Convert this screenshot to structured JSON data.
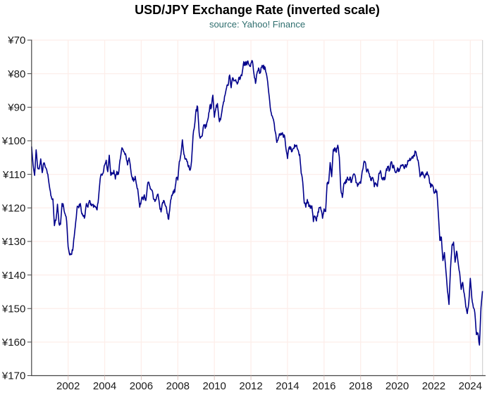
{
  "header": {
    "title": "USD/JPY Exchange Rate (inverted scale)",
    "subtitle": "source: Yahoo! Finance"
  },
  "colors": {
    "line": "#00008b",
    "axis": "#444444",
    "grid": "#fdeeea",
    "right_border": "#c9c9c9",
    "x_tick_mark": "#dcc3bd",
    "tick_label": "#1a1a1a",
    "subtitle": "#2e6e6e",
    "background": "#ffffff"
  },
  "chart_data": {
    "type": "line",
    "title": "USD/JPY Exchange Rate (inverted scale)",
    "subtitle": "source: Yahoo! Finance",
    "series_name": "USD/JPY",
    "x_unit": "year",
    "y_unit": "yen per US dollar",
    "y_axis_inverted": true,
    "grid": true,
    "legend": "none",
    "xlim": [
      2000,
      2024.67
    ],
    "ylim": [
      70,
      170
    ],
    "x_ticks": [
      2002,
      2004,
      2006,
      2008,
      2010,
      2012,
      2014,
      2016,
      2018,
      2020,
      2022,
      2024
    ],
    "x_tick_labels": [
      "2002",
      "2004",
      "2006",
      "2008",
      "2010",
      "2012",
      "2014",
      "2016",
      "2018",
      "2020",
      "2022",
      "2024"
    ],
    "y_ticks": [
      70,
      80,
      90,
      100,
      110,
      120,
      130,
      140,
      150,
      160,
      170
    ],
    "y_tick_labels": [
      "¥70",
      "¥80",
      "¥90",
      "¥100",
      "¥110",
      "¥120",
      "¥130",
      "¥140",
      "¥150",
      "¥160",
      "¥170"
    ],
    "x0": 2000.0,
    "dx_years": 0.0833333,
    "sampling": "monthly closes, first point Jan 2000 open, last point Aug 2024",
    "noise_amplitude": 0.85,
    "values": [
      101.7,
      107.2,
      110.3,
      102.7,
      108.1,
      108.4,
      105.4,
      109.5,
      106.6,
      107.9,
      108.8,
      111.2,
      114.4,
      116.7,
      117.3,
      125.3,
      123.7,
      118.9,
      124.7,
      124.9,
      118.7,
      119.6,
      121.8,
      123.9,
      131.6,
      134.0,
      133.9,
      132.7,
      128.5,
      124.1,
      119.5,
      120.0,
      118.7,
      121.8,
      122.5,
      122.5,
      118.7,
      119.8,
      117.8,
      118.7,
      119.0,
      119.2,
      119.8,
      120.6,
      116.8,
      111.5,
      110.0,
      109.6,
      107.2,
      105.8,
      109.2,
      104.3,
      110.3,
      109.6,
      108.8,
      111.4,
      109.1,
      110.0,
      105.9,
      102.9,
      102.6,
      103.6,
      104.6,
      107.2,
      105.1,
      108.2,
      110.9,
      112.1,
      110.6,
      113.3,
      115.7,
      119.8,
      117.8,
      117.2,
      116.1,
      117.8,
      113.5,
      112.4,
      114.4,
      114.7,
      117.3,
      118.1,
      116.9,
      115.9,
      119.1,
      121.2,
      118.4,
      117.9,
      119.5,
      121.7,
      123.4,
      118.9,
      116.2,
      115.0,
      115.3,
      111.1,
      111.7,
      106.2,
      104.1,
      99.7,
      104.0,
      105.5,
      106.2,
      107.8,
      108.8,
      106.1,
      98.5,
      95.5,
      90.7,
      89.9,
      97.6,
      99.0,
      98.6,
      95.3,
      96.3,
      94.7,
      93.1,
      89.7,
      90.1,
      86.4,
      93.0,
      90.3,
      88.9,
      93.4,
      93.8,
      91.1,
      88.4,
      86.4,
      84.2,
      83.5,
      80.4,
      84.2,
      81.2,
      82.0,
      81.8,
      83.1,
      81.2,
      81.5,
      80.6,
      77.2,
      76.7,
      77.1,
      76.2,
      77.6,
      76.9,
      76.3,
      80.1,
      82.9,
      79.8,
      78.3,
      79.8,
      78.1,
      78.4,
      77.9,
      79.8,
      82.5,
      86.8,
      91.1,
      92.6,
      94.2,
      97.4,
      100.5,
      99.1,
      98.0,
      98.2,
      98.3,
      98.4,
      102.4,
      105.3,
      102.0,
      101.8,
      103.2,
      102.2,
      101.8,
      101.3,
      102.8,
      104.1,
      109.7,
      112.3,
      118.6,
      119.8,
      117.5,
      119.6,
      120.1,
      119.4,
      124.1,
      122.5,
      123.9,
      121.2,
      119.9,
      120.6,
      123.1,
      120.3,
      121.1,
      112.7,
      112.6,
      106.5,
      110.7,
      102.8,
      102.1,
      103.4,
      101.3,
      104.8,
      114.5,
      116.9,
      112.8,
      112.8,
      111.4,
      111.5,
      110.8,
      112.4,
      110.3,
      110.0,
      112.5,
      113.6,
      112.5,
      112.7,
      109.2,
      106.7,
      106.3,
      109.3,
      108.8,
      110.8,
      111.9,
      111.0,
      113.7,
      112.9,
      113.6,
      109.7,
      108.9,
      111.4,
      110.9,
      111.4,
      108.3,
      107.9,
      108.8,
      106.3,
      108.1,
      108.0,
      109.5,
      108.6,
      108.4,
      108.1,
      107.5,
      107.2,
      107.8,
      107.9,
      105.9,
      105.9,
      105.5,
      104.7,
      104.3,
      103.2,
      104.7,
      106.6,
      110.7,
      109.3,
      109.8,
      111.1,
      109.7,
      110.0,
      111.3,
      113.9,
      113.1,
      115.1,
      115.1,
      115.0,
      121.7,
      129.7,
      128.7,
      135.7,
      133.3,
      138.9,
      144.7,
      148.8,
      138.1,
      131.1,
      130.2,
      136.2,
      132.9,
      136.3,
      139.3,
      144.3,
      142.2,
      145.5,
      149.4,
      151.5,
      148.2,
      141.0,
      146.9,
      149.7,
      151.4,
      157.8,
      157.3,
      160.9,
      149.8,
      144.8
    ]
  }
}
